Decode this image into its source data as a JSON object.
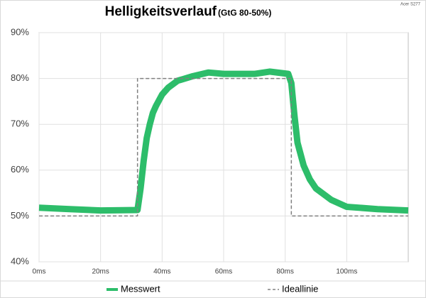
{
  "chart_data": {
    "type": "line",
    "title": "Helligkeitsverlauf",
    "subtitle": "(GtG 80-50%)",
    "watermark": "Acer S277",
    "xlim": [
      0,
      120
    ],
    "ylim": [
      40,
      90
    ],
    "xticks": [
      {
        "value": 0,
        "label": "0ms"
      },
      {
        "value": 20,
        "label": "20ms"
      },
      {
        "value": 40,
        "label": "40ms"
      },
      {
        "value": 60,
        "label": "60ms"
      },
      {
        "value": 80,
        "label": "80ms"
      },
      {
        "value": 100,
        "label": "100ms"
      }
    ],
    "yticks": [
      {
        "value": 40,
        "label": "40%"
      },
      {
        "value": 50,
        "label": "50%"
      },
      {
        "value": 60,
        "label": "60%"
      },
      {
        "value": 70,
        "label": "70%"
      },
      {
        "value": 80,
        "label": "80%"
      },
      {
        "value": 90,
        "label": "90%"
      }
    ],
    "grid": true,
    "series": [
      {
        "name": "Messwert",
        "color": "#2dbd6a",
        "line_style": "solid",
        "x": [
          0,
          10,
          20,
          32,
          33,
          34,
          35,
          36,
          37,
          38,
          40,
          42,
          45,
          50,
          55,
          60,
          70,
          75,
          81,
          82,
          83,
          84,
          86,
          88,
          90,
          95,
          100,
          110,
          120
        ],
        "values": [
          51.8,
          51.5,
          51.2,
          51.3,
          56,
          62,
          67,
          70,
          72.5,
          74,
          76.5,
          78,
          79.5,
          80.5,
          81.3,
          81,
          81,
          81.5,
          81,
          79,
          72,
          66,
          61,
          58,
          56,
          53.5,
          52,
          51.5,
          51.2
        ]
      },
      {
        "name": "Ideallinie",
        "color": "#808080",
        "line_style": "dashed",
        "x": [
          0,
          32,
          32,
          82,
          82,
          120
        ],
        "values": [
          50,
          50,
          80,
          80,
          50,
          50
        ]
      }
    ]
  }
}
